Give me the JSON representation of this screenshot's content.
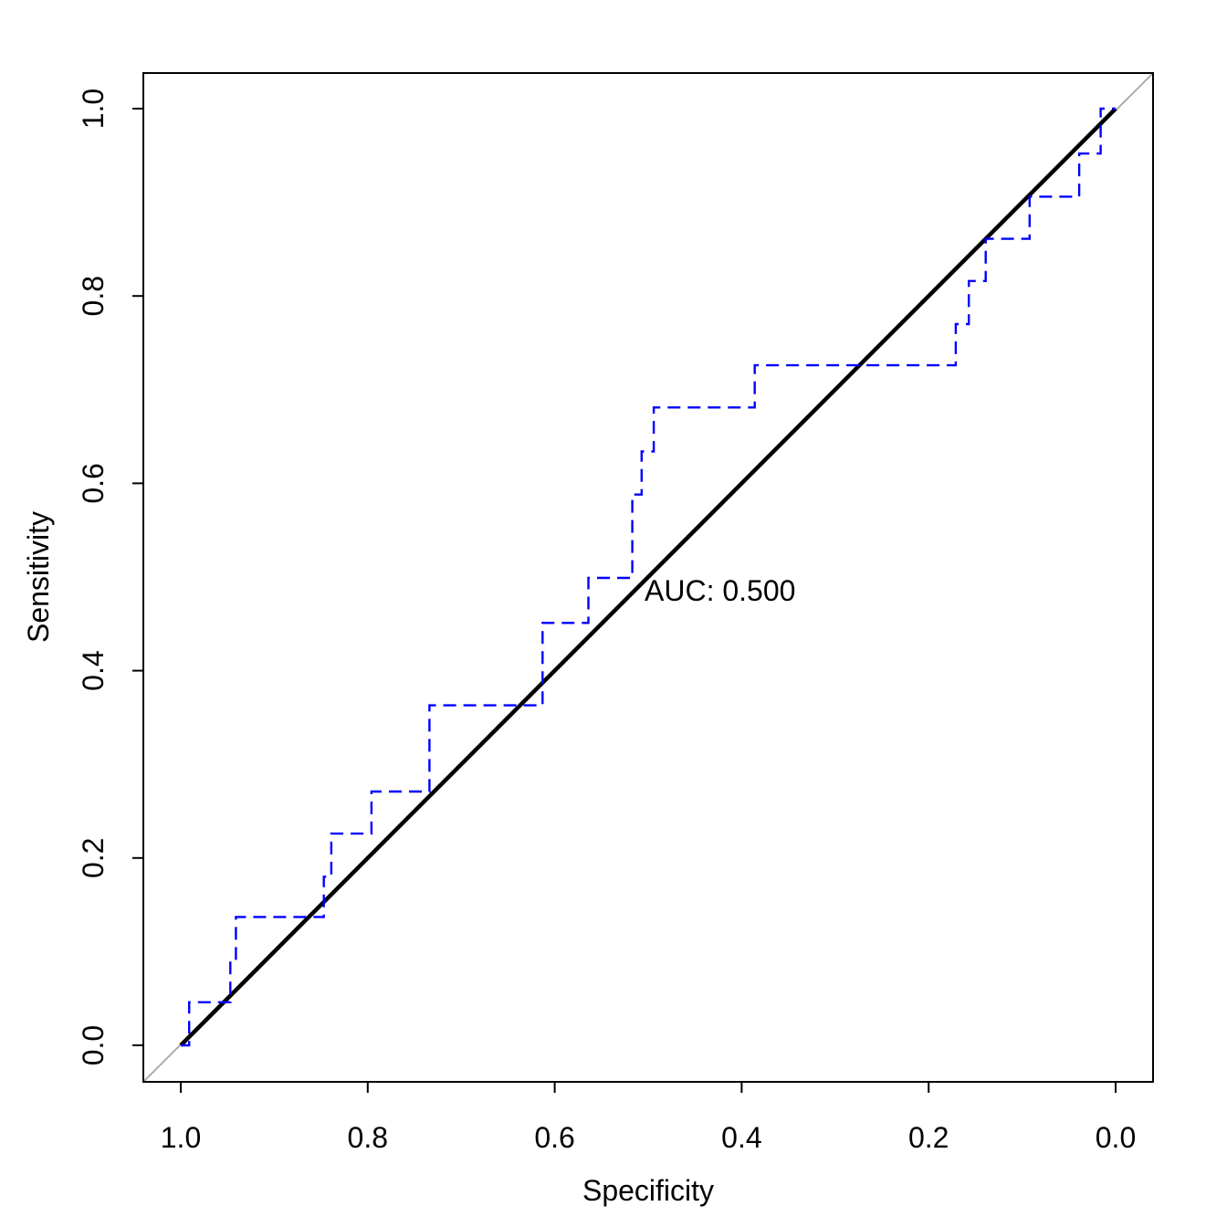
{
  "figure": {
    "background": "#ffffff",
    "annotation": {
      "auc_label": "AUC: 0.500"
    },
    "colors": {
      "main_roc": "#000000",
      "secondary_roc": "#0000ff",
      "identity_line": "#a6a6a6",
      "box": "#000000",
      "text": "#000000"
    }
  },
  "chart_data": {
    "type": "line",
    "subtype": "roc-curve",
    "title": "",
    "xlabel": "Specificity",
    "ylabel": "Sensitivity",
    "x_axis": {
      "range_display": [
        1.0,
        0.0
      ],
      "tick_values": [
        1.0,
        0.8,
        0.6,
        0.4,
        0.2,
        0.0
      ],
      "tick_labels": [
        "1.0",
        "0.8",
        "0.6",
        "0.4",
        "0.2",
        "0.0"
      ]
    },
    "y_axis": {
      "range": [
        0.0,
        1.0
      ],
      "tick_values": [
        0.0,
        0.2,
        0.4,
        0.6,
        0.8,
        1.0
      ],
      "tick_labels": [
        "0.0",
        "0.2",
        "0.4",
        "0.6",
        "0.8",
        "1.0"
      ]
    },
    "grid": false,
    "legend": "none",
    "annotations": [
      {
        "text": "AUC: 0.500",
        "specificity": 0.504,
        "sensitivity": 0.476,
        "anchor": "start"
      }
    ],
    "series": [
      {
        "name": "main-roc-diagonal",
        "style": "solid",
        "line_width": 4.5,
        "color": "#000000",
        "auc": 0.5,
        "points_spec_sens": [
          [
            1.0,
            0.0
          ],
          [
            0.0,
            1.0
          ]
        ]
      },
      {
        "name": "secondary-roc-steps",
        "style": "dashed",
        "line_width": 2.4,
        "color": "#0000ff",
        "points_spec_sens": [
          [
            1.0,
            0.0
          ],
          [
            0.991,
            0.0
          ],
          [
            0.991,
            0.046
          ],
          [
            0.947,
            0.046
          ],
          [
            0.947,
            0.091
          ],
          [
            0.941,
            0.091
          ],
          [
            0.941,
            0.137
          ],
          [
            0.847,
            0.137
          ],
          [
            0.847,
            0.18
          ],
          [
            0.839,
            0.18
          ],
          [
            0.839,
            0.226
          ],
          [
            0.796,
            0.226
          ],
          [
            0.796,
            0.271
          ],
          [
            0.734,
            0.271
          ],
          [
            0.734,
            0.363
          ],
          [
            0.613,
            0.363
          ],
          [
            0.613,
            0.451
          ],
          [
            0.564,
            0.451
          ],
          [
            0.564,
            0.499
          ],
          [
            0.517,
            0.499
          ],
          [
            0.517,
            0.588
          ],
          [
            0.507,
            0.588
          ],
          [
            0.507,
            0.634
          ],
          [
            0.494,
            0.634
          ],
          [
            0.494,
            0.681
          ],
          [
            0.386,
            0.681
          ],
          [
            0.386,
            0.726
          ],
          [
            0.171,
            0.726
          ],
          [
            0.171,
            0.77
          ],
          [
            0.157,
            0.77
          ],
          [
            0.157,
            0.816
          ],
          [
            0.139,
            0.816
          ],
          [
            0.139,
            0.861
          ],
          [
            0.092,
            0.861
          ],
          [
            0.092,
            0.906
          ],
          [
            0.039,
            0.906
          ],
          [
            0.039,
            0.952
          ],
          [
            0.016,
            0.952
          ],
          [
            0.016,
            1.0
          ],
          [
            0.0,
            1.0
          ]
        ]
      },
      {
        "name": "identity-reference-line",
        "style": "solid",
        "line_width": 1.8,
        "color": "#a6a6a6",
        "spans_full_box": true
      }
    ]
  }
}
